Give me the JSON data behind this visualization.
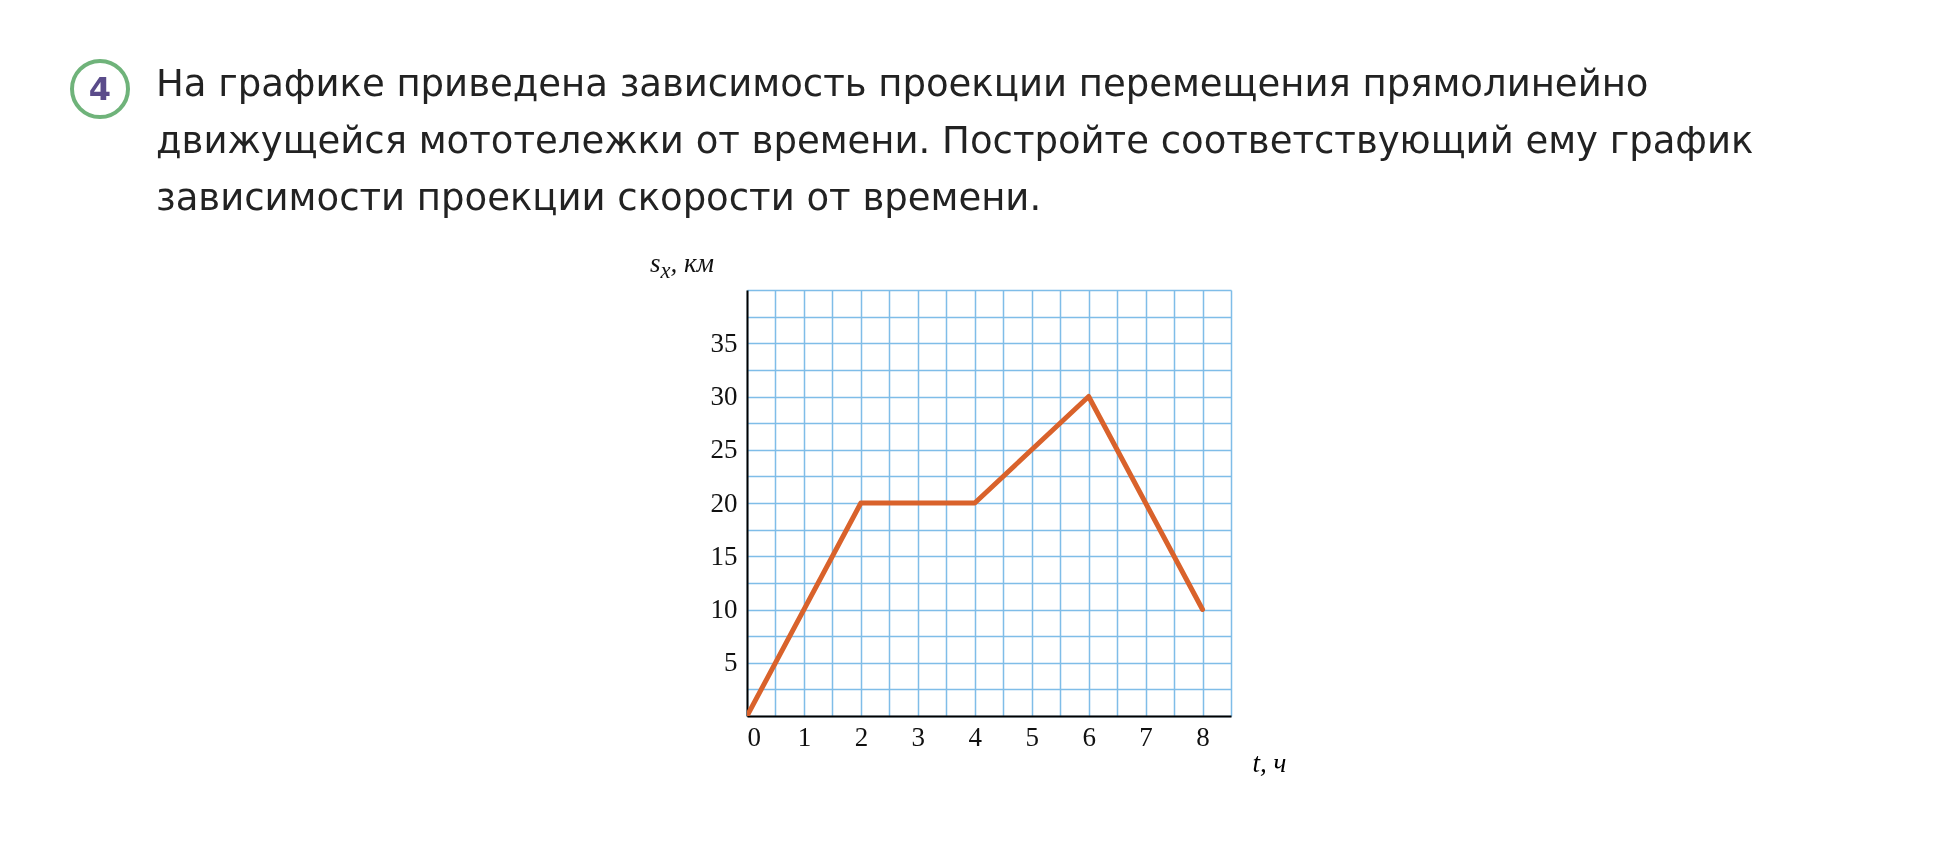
{
  "chart_data": {
    "type": "line",
    "title": "На графике приведена зависимость проекции перемещения прямолинейно движущейся мототележки от времени. Постройте соответствующий ему график зависимости проекции скорости от времени.",
    "annotations": [
      "4"
    ],
    "xlabel": "t, ч",
    "ylabel": "s$_{x}$, км",
    "x": [
      0,
      2,
      4,
      6,
      8
    ],
    "series": [
      {
        "color": "#d9622b",
        "values": [
          0,
          20,
          20,
          30,
          10
        ]
      }
    ],
    "xlim": [
      0,
      8.5
    ],
    "xticks": [
      0,
      {
        "value": 0.5,
        "label": null
      },
      1,
      {
        "value": 1.5,
        "label": null
      },
      2,
      {
        "value": 2.5,
        "label": null
      },
      3,
      {
        "value": 3.5,
        "label": null
      },
      4,
      {
        "value": 4.5,
        "label": null
      },
      5,
      {
        "value": 5.5,
        "label": null
      },
      6,
      {
        "value": 6.5,
        "label": null
      },
      7,
      {
        "value": 7.5,
        "label": null
      },
      8,
      {
        "value": 8.5,
        "label": null
      }
    ],
    "ylim": [
      0,
      40
    ],
    "yticks": [
      {
        "value": 0,
        "label": null
      },
      {
        "value": 2.5,
        "label": null
      },
      5,
      {
        "value": 7.5,
        "label": null
      },
      10,
      {
        "value": 12.5,
        "label": null
      },
      15,
      {
        "value": 17.5,
        "label": null
      },
      20,
      {
        "value": 22.5,
        "label": null
      },
      25,
      {
        "value": 27.5,
        "label": null
      },
      30,
      {
        "value": 32.5,
        "label": null
      },
      35,
      {
        "value": 37.5,
        "label": null
      },
      {
        "value": 40,
        "label": null
      }
    ],
    "grid": true,
    "marker": "none",
    "line_style": "solid"
  }
}
